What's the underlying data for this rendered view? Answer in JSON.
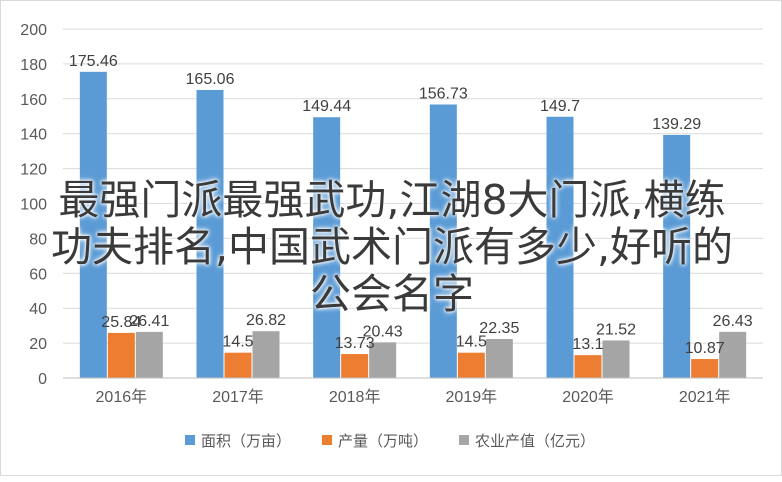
{
  "overlay": {
    "line1": "最强门派最强武功,江湖8大门派,横练",
    "line2": "功夫排名,中国武术门派有多少,好听的",
    "line3": "公会名字"
  },
  "chart_data": {
    "type": "bar",
    "title": "",
    "xlabel": "",
    "ylabel": "",
    "categories": [
      "2016年",
      "2017年",
      "2018年",
      "2019年",
      "2020年",
      "2021年"
    ],
    "series": [
      {
        "name": "面积（万亩）",
        "color": "#5b9bd5",
        "values": [
          175.46,
          165.06,
          149.44,
          156.73,
          149.7,
          139.29
        ],
        "labels": [
          "175.46",
          "165.06",
          "149.44",
          "156.73",
          "149.7",
          "139.29"
        ]
      },
      {
        "name": "产量（万吨）",
        "color": "#ed7d31",
        "values": [
          25.84,
          14.5,
          13.73,
          14.5,
          13.1,
          10.87
        ],
        "labels": [
          "25.84",
          "14.5",
          "13.73",
          "14.5",
          "13.1",
          "10.87"
        ]
      },
      {
        "name": "农业产值（亿元）",
        "color": "#a5a5a5",
        "values": [
          26.41,
          26.82,
          20.43,
          22.35,
          21.52,
          26.43
        ],
        "labels": [
          "26.41",
          "26.82",
          "20.43",
          "22.35",
          "21.52",
          "26.43"
        ]
      }
    ],
    "ylim": [
      0,
      200
    ],
    "yticks": [
      0,
      20,
      40,
      60,
      80,
      100,
      120,
      140,
      160,
      180,
      200
    ],
    "grid": true,
    "legend": "bottom"
  }
}
